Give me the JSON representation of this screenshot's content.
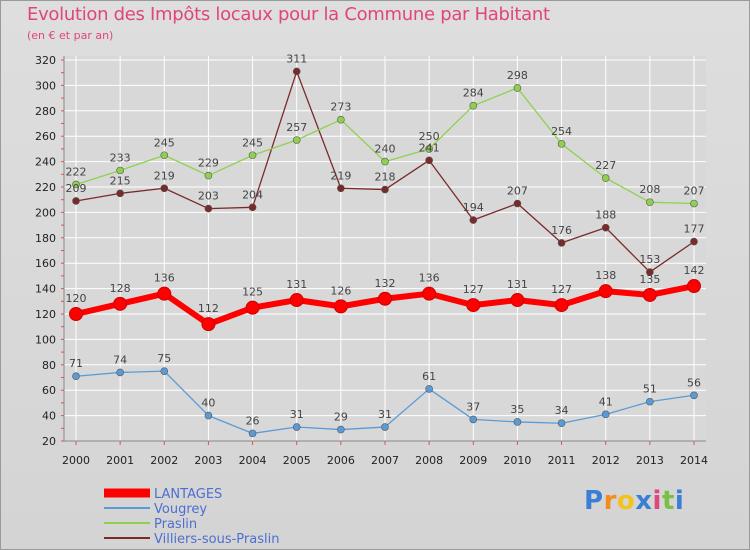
{
  "title": "Evolution des Impôts locaux pour la Commune par Habitant",
  "subtitle": "(en € et par an)",
  "logo": {
    "text": "Proxiti",
    "letters": [
      "P",
      "r",
      "o",
      "x",
      "i",
      "t",
      "i"
    ],
    "colors": [
      "#3a7fd5",
      "#f28c1e",
      "#f2c21e",
      "#3a7fd5",
      "#e0457b",
      "#7bc043",
      "#3a7fd5"
    ]
  },
  "colors": {
    "title": "#e0457b",
    "background": "#d8d8d8",
    "grid": "#ffffff"
  },
  "chart_data": {
    "type": "line",
    "categories": [
      "2000",
      "2001",
      "2002",
      "2003",
      "2004",
      "2005",
      "2006",
      "2007",
      "2008",
      "2009",
      "2010",
      "2011",
      "2012",
      "2013",
      "2014"
    ],
    "ylim": [
      20,
      320
    ],
    "yticks": [
      20,
      40,
      60,
      80,
      100,
      120,
      140,
      160,
      180,
      200,
      220,
      240,
      260,
      280,
      300,
      320
    ],
    "grid": true,
    "legend_position": "bottom-left",
    "series": [
      {
        "name": "Villiers-sous-Praslin",
        "color": "#7b2a2a",
        "values": [
          209,
          215,
          219,
          203,
          204,
          311,
          219,
          218,
          241,
          194,
          207,
          176,
          188,
          153,
          177
        ]
      },
      {
        "name": "Praslin",
        "color": "#8fd14f",
        "values": [
          222,
          233,
          245,
          229,
          245,
          257,
          273,
          240,
          250,
          284,
          298,
          254,
          227,
          208,
          207
        ]
      },
      {
        "name": "Vougrey",
        "color": "#5b9bd5",
        "values": [
          71,
          74,
          75,
          40,
          26,
          31,
          29,
          31,
          61,
          37,
          35,
          34,
          41,
          51,
          56
        ]
      },
      {
        "name": "LANTAGES",
        "color": "#ff0000",
        "values": [
          120,
          128,
          136,
          112,
          125,
          131,
          126,
          132,
          136,
          127,
          131,
          127,
          138,
          135,
          142
        ]
      }
    ],
    "legend": [
      "LANTAGES",
      "Vougrey",
      "Praslin",
      "Villiers-sous-Praslin"
    ]
  }
}
